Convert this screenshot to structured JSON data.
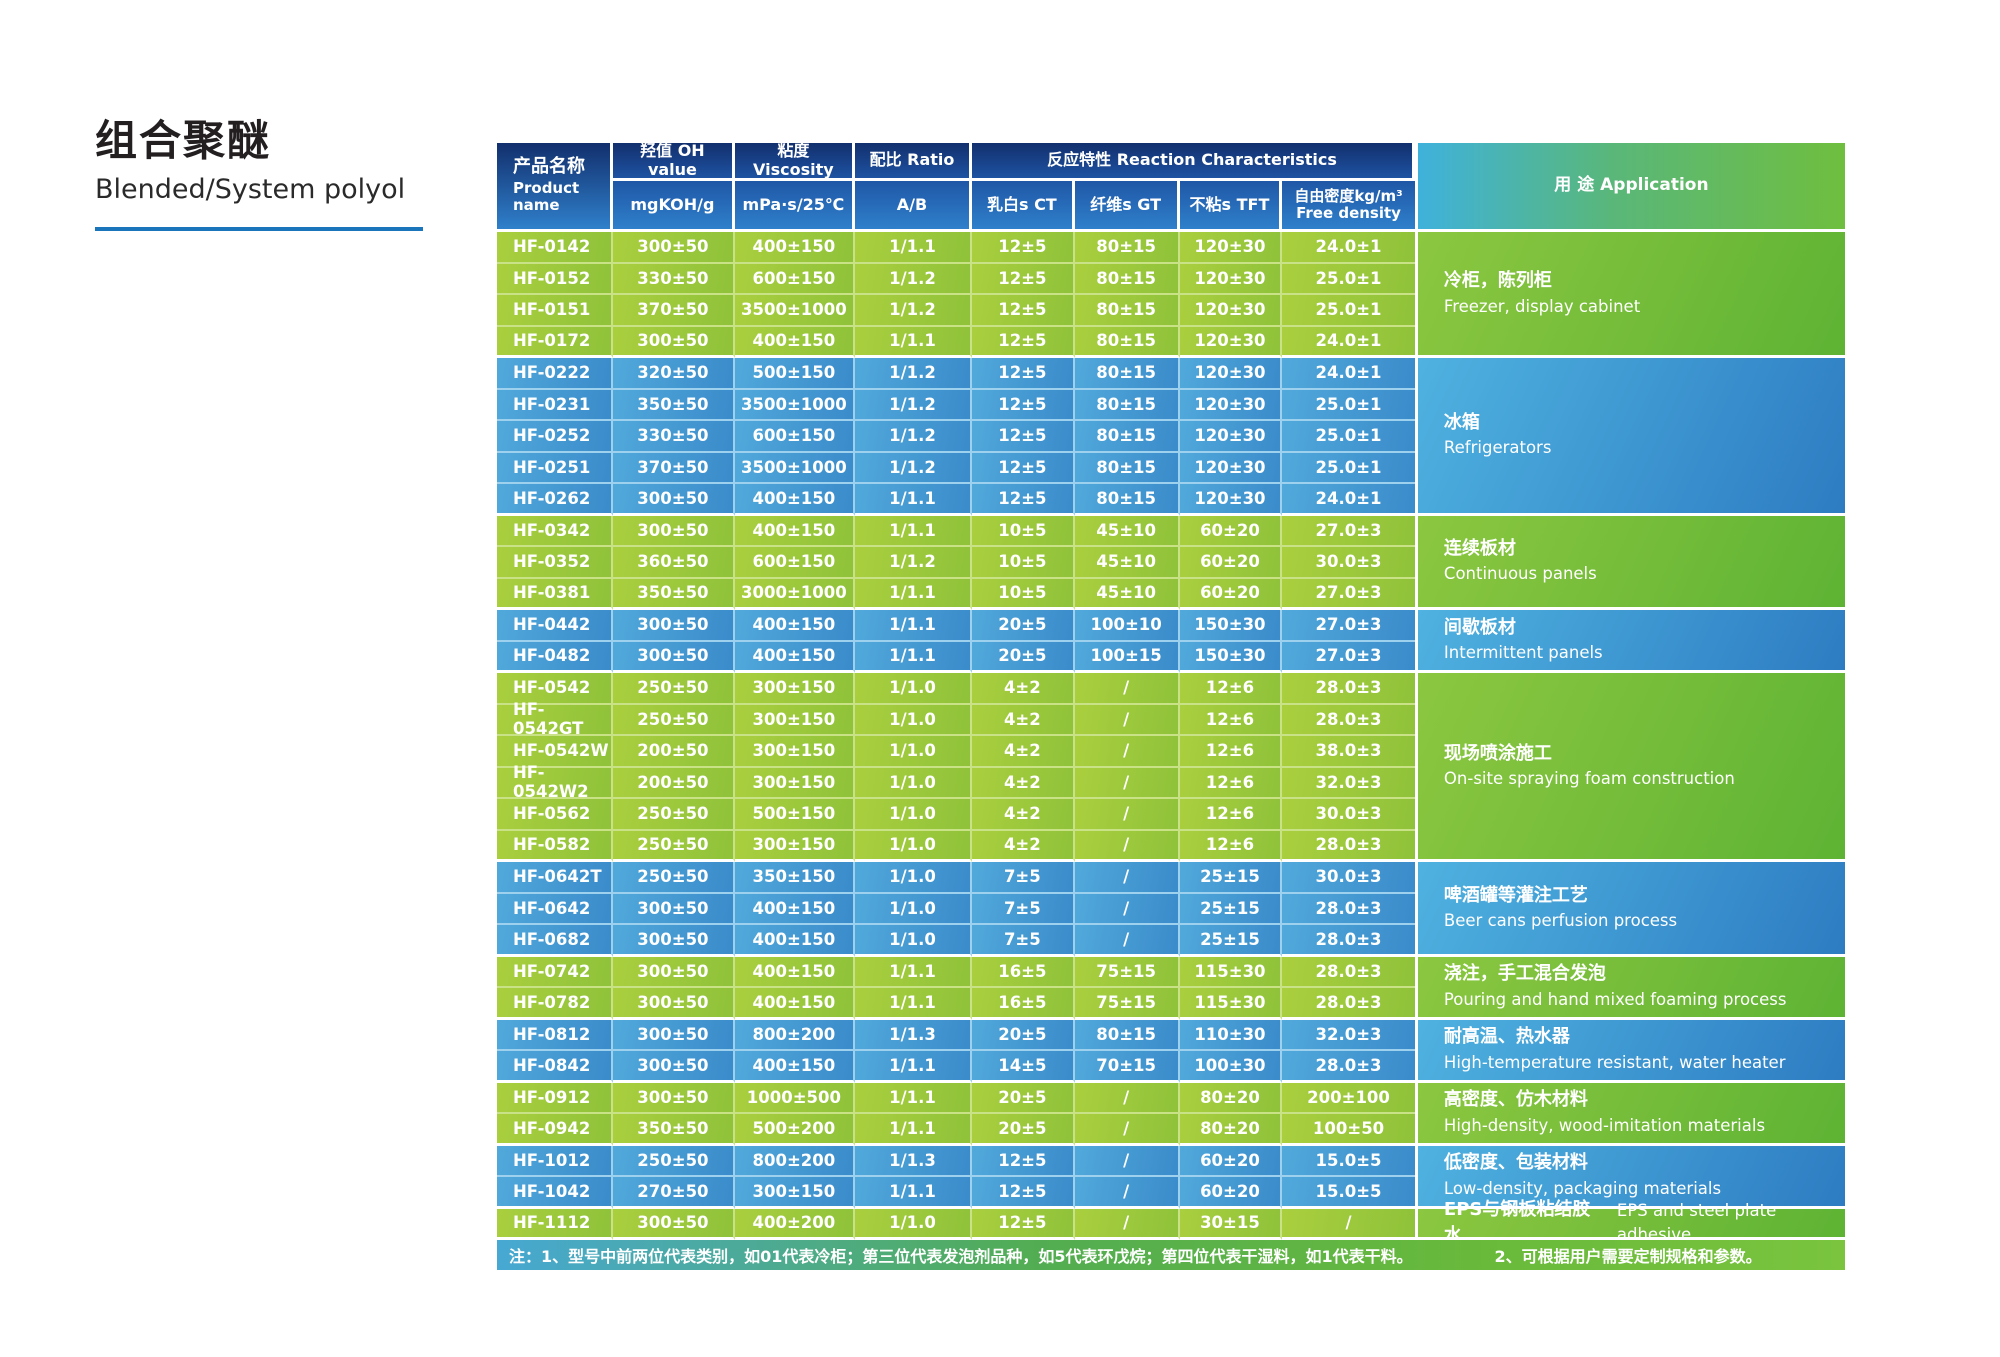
{
  "title": {
    "zh": "组合聚醚",
    "en": "Blended/System polyol"
  },
  "colors": {
    "underline": "#1b75bb",
    "header_top": "#122f6d",
    "header_bottom": "#2f80cb",
    "green_row": "#9cc83c",
    "blue_row": "#4398d2",
    "app_green": "#6fbe3f",
    "app_blue": "#3f9fd8",
    "note_gradient_left": "#47a8d3",
    "note_gradient_right": "#7ac43e"
  },
  "table": {
    "headers": {
      "product_zh": "产品名称",
      "product_en": "Product name",
      "oh": "羟值 OH value",
      "oh_unit": "mgKOH/g",
      "viscosity": "粘度 Viscosity",
      "viscosity_unit": "mPa·s/25℃",
      "ratio": "配比 Ratio",
      "ratio_unit": "A/B",
      "reaction": "反应特性 Reaction Characteristics",
      "ct": "乳白s CT",
      "gt": "纤维s GT",
      "tft": "不粘s TFT",
      "density_zh": "自由密度kg/m³",
      "density_en": "Free density",
      "application": "用 途 Application"
    },
    "groups": [
      {
        "color": "green",
        "application_zh": "冷柜，陈列柜",
        "application_en": "Freezer, display cabinet",
        "rows": [
          [
            "HF-0142",
            "300±50",
            "400±150",
            "1/1.1",
            "12±5",
            "80±15",
            "120±30",
            "24.0±1"
          ],
          [
            "HF-0152",
            "330±50",
            "600±150",
            "1/1.2",
            "12±5",
            "80±15",
            "120±30",
            "25.0±1"
          ],
          [
            "HF-0151",
            "370±50",
            "3500±1000",
            "1/1.2",
            "12±5",
            "80±15",
            "120±30",
            "25.0±1"
          ],
          [
            "HF-0172",
            "300±50",
            "400±150",
            "1/1.1",
            "12±5",
            "80±15",
            "120±30",
            "24.0±1"
          ]
        ]
      },
      {
        "color": "blue",
        "application_zh": "冰箱",
        "application_en": "Refrigerators",
        "rows": [
          [
            "HF-0222",
            "320±50",
            "500±150",
            "1/1.2",
            "12±5",
            "80±15",
            "120±30",
            "24.0±1"
          ],
          [
            "HF-0231",
            "350±50",
            "3500±1000",
            "1/1.2",
            "12±5",
            "80±15",
            "120±30",
            "25.0±1"
          ],
          [
            "HF-0252",
            "330±50",
            "600±150",
            "1/1.2",
            "12±5",
            "80±15",
            "120±30",
            "25.0±1"
          ],
          [
            "HF-0251",
            "370±50",
            "3500±1000",
            "1/1.2",
            "12±5",
            "80±15",
            "120±30",
            "25.0±1"
          ],
          [
            "HF-0262",
            "300±50",
            "400±150",
            "1/1.1",
            "12±5",
            "80±15",
            "120±30",
            "24.0±1"
          ]
        ]
      },
      {
        "color": "green",
        "application_zh": "连续板材",
        "application_en": "Continuous panels",
        "rows": [
          [
            "HF-0342",
            "300±50",
            "400±150",
            "1/1.1",
            "10±5",
            "45±10",
            "60±20",
            "27.0±3"
          ],
          [
            "HF-0352",
            "360±50",
            "600±150",
            "1/1.2",
            "10±5",
            "45±10",
            "60±20",
            "30.0±3"
          ],
          [
            "HF-0381",
            "350±50",
            "3000±1000",
            "1/1.1",
            "10±5",
            "45±10",
            "60±20",
            "27.0±3"
          ]
        ]
      },
      {
        "color": "blue",
        "application_zh": "间歇板材",
        "application_en": "Intermittent panels",
        "rows": [
          [
            "HF-0442",
            "300±50",
            "400±150",
            "1/1.1",
            "20±5",
            "100±10",
            "150±30",
            "27.0±3"
          ],
          [
            "HF-0482",
            "300±50",
            "400±150",
            "1/1.1",
            "20±5",
            "100±15",
            "150±30",
            "27.0±3"
          ]
        ]
      },
      {
        "color": "green",
        "application_zh": "现场喷涂施工",
        "application_en": "On-site spraying foam construction",
        "rows": [
          [
            "HF-0542",
            "250±50",
            "300±150",
            "1/1.0",
            "4±2",
            "/",
            "12±6",
            "28.0±3"
          ],
          [
            "HF-0542GT",
            "250±50",
            "300±150",
            "1/1.0",
            "4±2",
            "/",
            "12±6",
            "28.0±3"
          ],
          [
            "HF-0542W",
            "200±50",
            "300±150",
            "1/1.0",
            "4±2",
            "/",
            "12±6",
            "38.0±3"
          ],
          [
            "HF-0542W2",
            "200±50",
            "300±150",
            "1/1.0",
            "4±2",
            "/",
            "12±6",
            "32.0±3"
          ],
          [
            "HF-0562",
            "250±50",
            "500±150",
            "1/1.0",
            "4±2",
            "/",
            "12±6",
            "30.0±3"
          ],
          [
            "HF-0582",
            "250±50",
            "300±150",
            "1/1.0",
            "4±2",
            "/",
            "12±6",
            "28.0±3"
          ]
        ]
      },
      {
        "color": "blue",
        "application_zh": "啤酒罐等灌注工艺",
        "application_en": "Beer cans perfusion process",
        "rows": [
          [
            "HF-0642T",
            "250±50",
            "350±150",
            "1/1.0",
            "7±5",
            "/",
            "25±15",
            "30.0±3"
          ],
          [
            "HF-0642",
            "300±50",
            "400±150",
            "1/1.0",
            "7±5",
            "/",
            "25±15",
            "28.0±3"
          ],
          [
            "HF-0682",
            "300±50",
            "400±150",
            "1/1.0",
            "7±5",
            "/",
            "25±15",
            "28.0±3"
          ]
        ]
      },
      {
        "color": "green",
        "application_zh": "浇注，手工混合发泡",
        "application_en": "Pouring and hand mixed foaming process",
        "rows": [
          [
            "HF-0742",
            "300±50",
            "400±150",
            "1/1.1",
            "16±5",
            "75±15",
            "115±30",
            "28.0±3"
          ],
          [
            "HF-0782",
            "300±50",
            "400±150",
            "1/1.1",
            "16±5",
            "75±15",
            "115±30",
            "28.0±3"
          ]
        ]
      },
      {
        "color": "blue",
        "application_zh": "耐高温、热水器",
        "application_en": "High-temperature resistant, water heater",
        "rows": [
          [
            "HF-0812",
            "300±50",
            "800±200",
            "1/1.3",
            "20±5",
            "80±15",
            "110±30",
            "32.0±3"
          ],
          [
            "HF-0842",
            "300±50",
            "400±150",
            "1/1.1",
            "14±5",
            "70±15",
            "100±30",
            "28.0±3"
          ]
        ]
      },
      {
        "color": "green",
        "application_zh": "高密度、仿木材料",
        "application_en": "High-density, wood-imitation materials",
        "rows": [
          [
            "HF-0912",
            "300±50",
            "1000±500",
            "1/1.1",
            "20±5",
            "/",
            "80±20",
            "200±100"
          ],
          [
            "HF-0942",
            "350±50",
            "500±200",
            "1/1.1",
            "20±5",
            "/",
            "80±20",
            "100±50"
          ]
        ]
      },
      {
        "color": "blue",
        "application_zh": "低密度、包装材料",
        "application_en": "Low-density, packaging materials",
        "rows": [
          [
            "HF-1012",
            "250±50",
            "800±200",
            "1/1.3",
            "12±5",
            "/",
            "60±20",
            "15.0±5"
          ],
          [
            "HF-1042",
            "270±50",
            "300±150",
            "1/1.1",
            "12±5",
            "/",
            "60±20",
            "15.0±5"
          ]
        ]
      },
      {
        "color": "green",
        "app_inline": true,
        "application_zh": "EPS与钢板粘结胶水",
        "application_en": "EPS and steel plate adhesive",
        "rows": [
          [
            "HF-1112",
            "300±50",
            "400±200",
            "1/1.0",
            "12±5",
            "/",
            "30±15",
            "/"
          ]
        ]
      }
    ],
    "notes": {
      "note1": "注：1、型号中前两位代表类别，如01代表冷柜；第三位代表发泡剂品种，如5代表环戊烷；第四位代表干湿料，如1代表干料。",
      "note2": "2、可根据用户需要定制规格和参数。"
    }
  }
}
